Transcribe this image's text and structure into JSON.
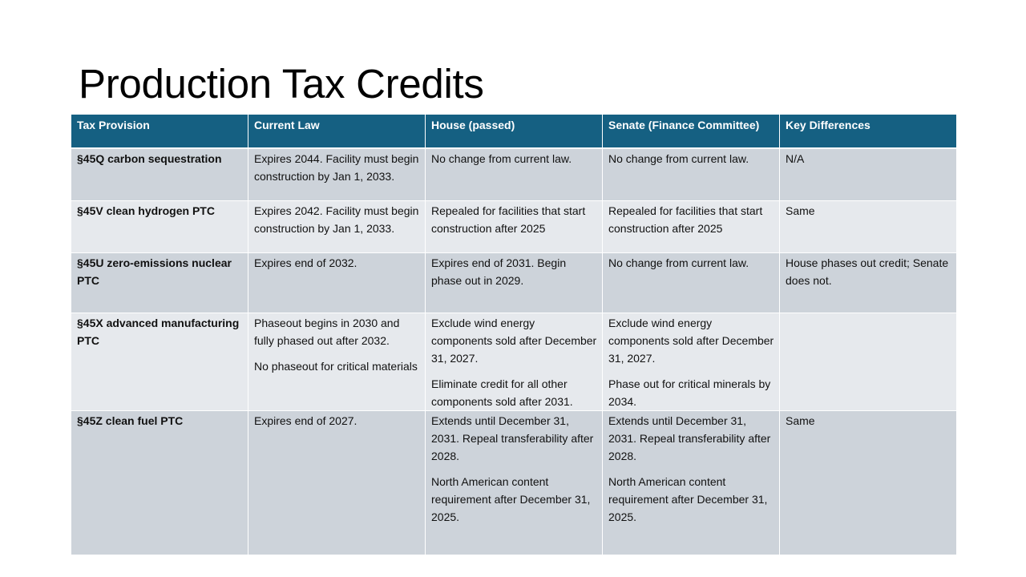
{
  "slide": {
    "title": "Production Tax Credits"
  },
  "table": {
    "headers": [
      "Tax Provision",
      "Current Law",
      "House (passed)",
      "Senate (Finance Committee)",
      "Key Differences"
    ],
    "rows": [
      {
        "provision": "§45Q carbon sequestration",
        "current_law": [
          "Expires 2044. Facility must begin construction by Jan 1, 2033."
        ],
        "house": [
          "No change from current law."
        ],
        "senate": [
          "No change from current law."
        ],
        "differences": [
          "N/A"
        ]
      },
      {
        "provision": "§45V clean hydrogen PTC",
        "current_law": [
          "Expires 2042. Facility must begin construction by Jan 1, 2033."
        ],
        "house": [
          "Repealed for facilities that start construction after 2025"
        ],
        "senate": [
          "Repealed for facilities that start construction after 2025"
        ],
        "differences": [
          "Same"
        ]
      },
      {
        "provision": "§45U zero-emissions nuclear PTC",
        "current_law": [
          "Expires end of 2032."
        ],
        "house": [
          "Expires end of 2031. Begin phase out in 2029."
        ],
        "senate": [
          "No change from current law."
        ],
        "differences": [
          "House phases out credit; Senate does not."
        ]
      },
      {
        "provision": "§45X advanced manufacturing PTC",
        "current_law": [
          "Phaseout begins in 2030 and fully phased out after 2032.",
          "No phaseout for critical materials"
        ],
        "house": [
          "Exclude wind energy components sold after December 31, 2027.",
          "Eliminate credit for all other components sold after 2031."
        ],
        "senate": [
          "Exclude wind energy components sold after December 31, 2027.",
          "Phase out for critical minerals by 2034."
        ],
        "differences": [
          ""
        ]
      },
      {
        "provision": "§45Z clean fuel PTC",
        "current_law": [
          "Expires end of 2027."
        ],
        "house": [
          "Extends until December 31, 2031. Repeal transferability after 2028.",
          "North American content requirement after December 31, 2025."
        ],
        "senate": [
          "Extends until December 31, 2031. Repeal transferability after 2028.",
          "North American content requirement after December 31, 2025."
        ],
        "differences": [
          "Same"
        ]
      }
    ]
  }
}
